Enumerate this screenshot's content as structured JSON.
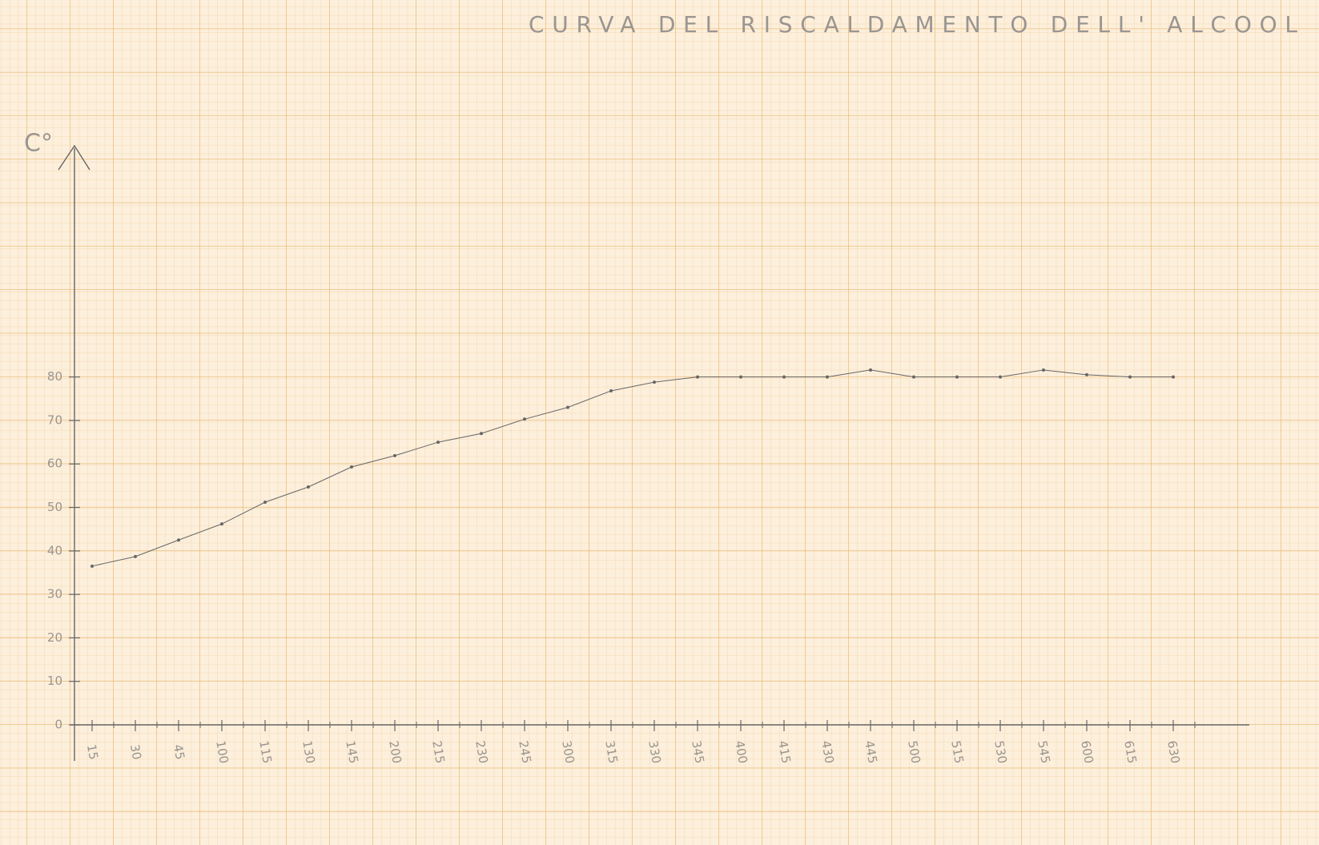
{
  "chart_data": {
    "type": "line",
    "title": "CURVA DEL RISCALDAMENTO DELL' ALCOOL",
    "y_label": "C°",
    "categories": [
      "15",
      "30",
      "45",
      "100",
      "115",
      "130",
      "145",
      "200",
      "215",
      "230",
      "245",
      "300",
      "315",
      "330",
      "345",
      "400",
      "415",
      "430",
      "445",
      "500",
      "515",
      "530",
      "545",
      "600",
      "615",
      "630"
    ],
    "values": [
      36.5,
      38.7,
      42.5,
      46.2,
      51.2,
      54.7,
      59.3,
      61.9,
      65,
      67,
      70.3,
      73,
      76.8,
      78.8,
      80,
      80,
      80,
      80,
      81.6,
      80,
      80,
      80,
      81.6,
      80.5,
      80,
      80
    ],
    "color": "#666666",
    "ylim": [
      0,
      135
    ],
    "yticks": [
      0,
      10,
      20,
      30,
      40,
      50,
      60,
      70,
      80
    ],
    "grid": false
  }
}
